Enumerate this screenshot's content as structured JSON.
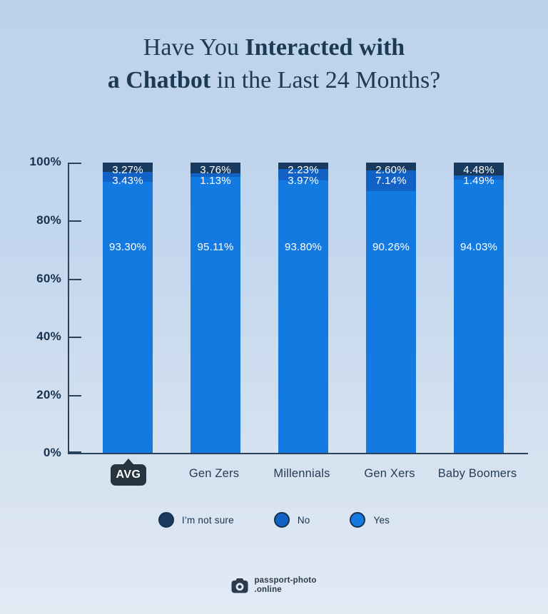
{
  "title": {
    "part1": "Have You ",
    "part2_bold": "Interacted with",
    "part3_bold": "a Chatbot",
    "part4": " in the Last 24 Months?"
  },
  "chart_data": {
    "type": "bar",
    "subtype": "stacked-percentage",
    "categories": [
      "AVG",
      "Gen Zers",
      "Millennials",
      "Gen Xers",
      "Baby Boomers"
    ],
    "series": [
      {
        "name": "I’m not sure",
        "color": "#183a5e",
        "values": [
          3.27,
          3.76,
          2.23,
          2.6,
          4.48
        ]
      },
      {
        "name": "No",
        "color": "#1261c5",
        "values": [
          3.43,
          1.13,
          3.97,
          7.14,
          1.49
        ]
      },
      {
        "name": "Yes",
        "color": "#137ae1",
        "values": [
          93.3,
          95.11,
          93.8,
          90.26,
          94.03
        ]
      }
    ],
    "bar_labels": [
      [
        "3.27%",
        "3.43%",
        "93.30%"
      ],
      [
        "3.76%",
        "1.13%",
        "95.11%"
      ],
      [
        "2.23%",
        "3.97%",
        "93.80%"
      ],
      [
        "2.60%",
        "7.14%",
        "90.26%"
      ],
      [
        "4.48%",
        "1.49%",
        "94.03%"
      ]
    ],
    "y_ticks": [
      "100%",
      "80%",
      "60%",
      "40%",
      "20%",
      "0%"
    ],
    "ylim": [
      0,
      100
    ],
    "grid": false,
    "legend_position": "bottom",
    "legend": [
      {
        "label": "I’m not sure",
        "color": "#183a5e"
      },
      {
        "label": "No",
        "color": "#1261c5"
      },
      {
        "label": "Yes",
        "color": "#137ae1"
      }
    ],
    "highlighted_category": "AVG"
  },
  "colors": {
    "background_top": "#bdd3eb",
    "background_bottom": "#e2eaf4",
    "axis": "#2a4258",
    "text_navy": "#1c3a53",
    "badge": "#263440",
    "bar_label_text": "#ffffff"
  },
  "footer": {
    "brand_line1": "passport-photo",
    "brand_line2": ".online"
  }
}
